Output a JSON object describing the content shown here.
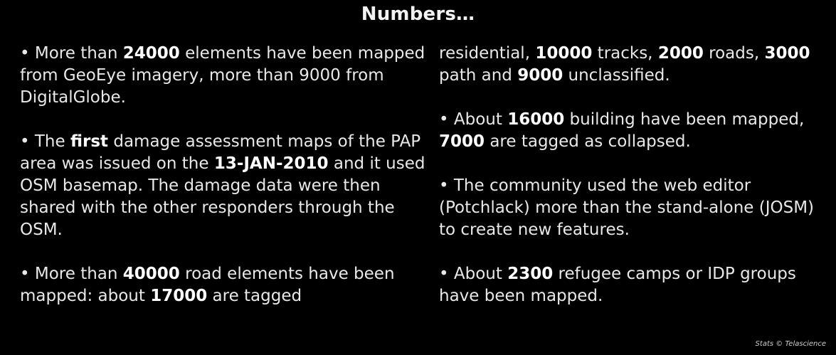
{
  "title": "Numbers…",
  "left_column": [
    [
      {
        "t": "• More than ",
        "b": false
      },
      {
        "t": "24000",
        "b": true
      },
      {
        "t": " elements have been mapped from GeoEye imagery, more than 9000 from DigitalGlobe.",
        "b": false
      }
    ],
    [
      {
        "t": "• The ",
        "b": false
      },
      {
        "t": "first",
        "b": true
      },
      {
        "t": " damage assessment maps of the PAP area was issued on the ",
        "b": false
      },
      {
        "t": "13-JAN-2010",
        "b": true
      },
      {
        "t": " and it used OSM basemap. The damage data were then shared with the other responders through the OSM.",
        "b": false
      }
    ],
    [
      {
        "t": "• More than ",
        "b": false
      },
      {
        "t": "40000",
        "b": true
      },
      {
        "t": " road elements have been mapped:  about ",
        "b": false
      },
      {
        "t": "17000",
        "b": true
      },
      {
        "t": " are tagged",
        "b": false
      }
    ]
  ],
  "right_column": [
    [
      {
        "t": "residential, ",
        "b": false
      },
      {
        "t": "10000",
        "b": true
      },
      {
        "t": " tracks, ",
        "b": false
      },
      {
        "t": "2000",
        "b": true
      },
      {
        "t": " roads, ",
        "b": false
      },
      {
        "t": "3000",
        "b": true
      },
      {
        "t": " path and ",
        "b": false
      },
      {
        "t": "9000",
        "b": true
      },
      {
        "t": " unclassified.",
        "b": false
      }
    ],
    [
      {
        "t": "• About ",
        "b": false
      },
      {
        "t": "16000",
        "b": true
      },
      {
        "t": " building have been mapped, ",
        "b": false
      },
      {
        "t": "7000",
        "b": true
      },
      {
        "t": " are tagged as collapsed.",
        "b": false
      }
    ],
    [
      {
        "t": "• The community used the web editor (Potchlack) more than the stand-alone (JOSM) to create new features.",
        "b": false
      }
    ],
    [
      {
        "t": "• About ",
        "b": false
      },
      {
        "t": "2300",
        "b": true
      },
      {
        "t": " refugee camps or IDP groups have been mapped.",
        "b": false
      }
    ]
  ],
  "credit": "Stats © Telascience",
  "colors": {
    "background": "#000000",
    "text": "#e8e8e8"
  }
}
